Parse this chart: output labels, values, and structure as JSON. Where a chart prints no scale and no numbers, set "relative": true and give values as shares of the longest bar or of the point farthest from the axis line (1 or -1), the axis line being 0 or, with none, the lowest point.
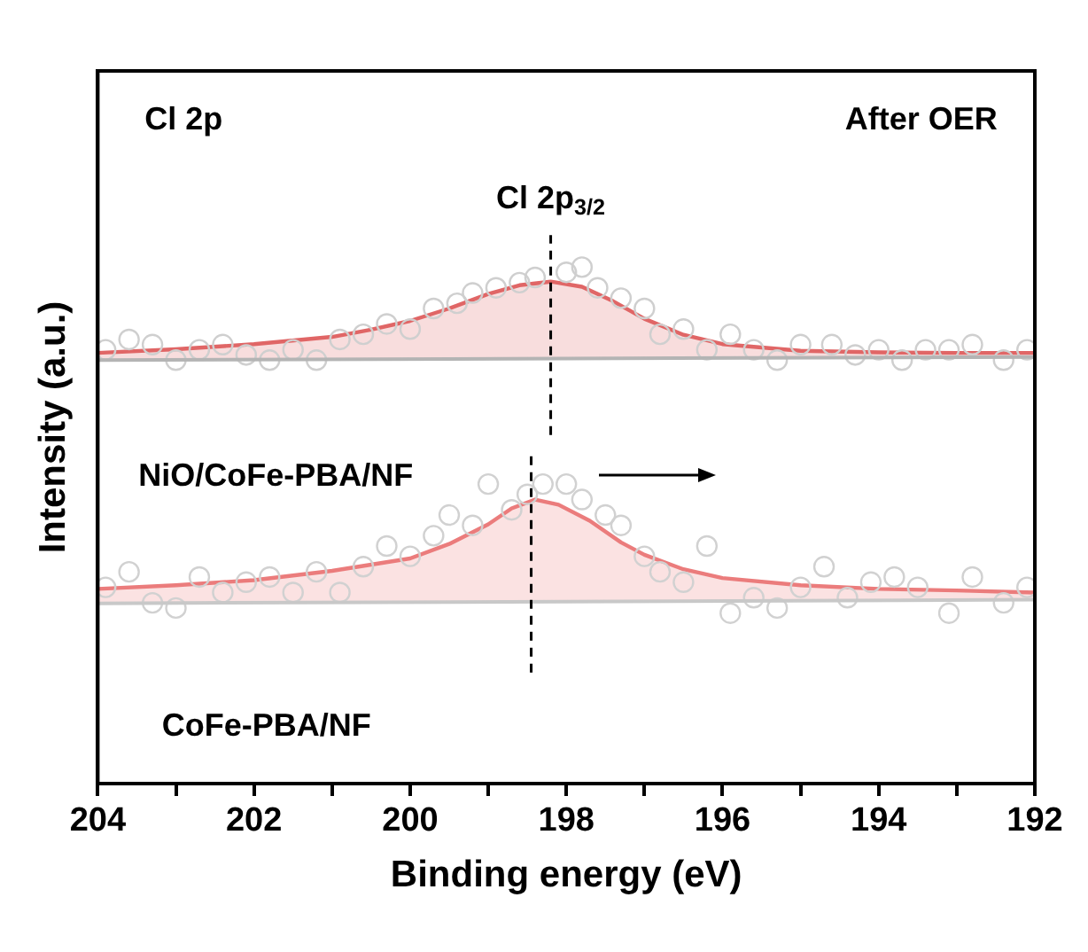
{
  "chart_data": {
    "type": "line",
    "relative": true,
    "xlabel": "Binding energy (eV)",
    "ylabel": "Intensity (a.u.)",
    "xlim": [
      204,
      192
    ],
    "xticks": [
      204,
      {
        "value": 203,
        "label": null
      },
      202,
      {
        "value": 201,
        "label": null
      },
      200,
      {
        "value": 199,
        "label": null
      },
      198,
      {
        "value": 197,
        "label": null
      },
      196,
      {
        "value": 195,
        "label": null
      },
      194,
      {
        "value": 193,
        "label": null
      },
      192
    ],
    "grid": false,
    "legend": false,
    "annotations": [
      "Cl 2p",
      "After OER",
      "Cl 2p$_{3/2}$",
      "NiO/CoFe-PBA/NF",
      "CoFe-PBA/NF"
    ],
    "ref_lines": [
      {
        "axis": "x",
        "value": 198.2,
        "color": "#000000",
        "line_style": "dashed"
      },
      {
        "axis": "x",
        "value": 198.45,
        "color": "#000000",
        "line_style": "dashed"
      }
    ],
    "series": [
      {
        "type": "area",
        "color": "#e06666",
        "x": [
          204,
          203,
          202,
          201,
          200.5,
          200,
          199.5,
          199,
          198.6,
          198.2,
          197.8,
          197.4,
          197,
          196.5,
          196,
          195,
          194,
          193,
          192
        ],
        "values": [
          0.834,
          0.841,
          0.851,
          0.865,
          0.879,
          0.896,
          0.92,
          0.948,
          0.965,
          0.972,
          0.962,
          0.934,
          0.9,
          0.869,
          0.851,
          0.838,
          0.835,
          0.834,
          0.834
        ]
      },
      {
        "color": "#b4b4b4",
        "x": [
          204,
          192
        ],
        "values": [
          0.82,
          0.826
        ]
      },
      {
        "type": "scatter",
        "color": "#cfcfcf",
        "marker": "circle",
        "x": [
          203.9,
          203.6,
          203.3,
          203.0,
          202.7,
          202.4,
          202.1,
          201.8,
          201.5,
          201.2,
          200.9,
          200.6,
          200.3,
          200.0,
          199.7,
          199.4,
          199.2,
          198.9,
          198.6,
          198.4,
          198.0,
          197.8,
          197.6,
          197.3,
          197.0,
          196.8,
          196.5,
          196.2,
          195.9,
          195.6,
          195.3,
          195.0,
          194.6,
          194.3,
          194.0,
          193.7,
          193.4,
          193.1,
          192.8,
          192.4,
          192.1
        ],
        "values": [
          0.84,
          0.86,
          0.85,
          0.82,
          0.84,
          0.85,
          0.83,
          0.82,
          0.84,
          0.82,
          0.86,
          0.87,
          0.89,
          0.88,
          0.92,
          0.93,
          0.95,
          0.96,
          0.97,
          0.98,
          0.99,
          1.0,
          0.96,
          0.94,
          0.92,
          0.87,
          0.88,
          0.84,
          0.87,
          0.84,
          0.82,
          0.85,
          0.85,
          0.83,
          0.84,
          0.82,
          0.84,
          0.84,
          0.85,
          0.82,
          0.84
        ]
      },
      {
        "type": "area",
        "color": "#eb7c7c",
        "x": [
          204,
          203,
          202,
          201,
          200,
          199.5,
          199,
          198.7,
          198.4,
          198.1,
          197.7,
          197.3,
          197,
          196.5,
          196,
          195,
          194,
          193,
          192
        ],
        "values": [
          0.377,
          0.384,
          0.394,
          0.412,
          0.436,
          0.464,
          0.502,
          0.533,
          0.55,
          0.54,
          0.509,
          0.467,
          0.443,
          0.415,
          0.398,
          0.384,
          0.377,
          0.374,
          0.37
        ]
      },
      {
        "color": "#c8c8c8",
        "x": [
          204,
          192
        ],
        "values": [
          0.349,
          0.356
        ]
      },
      {
        "type": "scatter",
        "color": "#d1d1d1",
        "marker": "circle",
        "x": [
          203.9,
          203.6,
          203.3,
          203.0,
          202.7,
          202.4,
          202.1,
          201.8,
          201.5,
          201.2,
          200.9,
          200.6,
          200.3,
          200.0,
          199.7,
          199.5,
          199.2,
          199.0,
          198.7,
          198.5,
          198.3,
          198.0,
          197.8,
          197.5,
          197.3,
          197.0,
          196.8,
          196.5,
          196.2,
          195.9,
          195.6,
          195.3,
          195.0,
          194.7,
          194.4,
          194.1,
          193.8,
          193.5,
          193.1,
          192.8,
          192.4,
          192.1
        ],
        "values": [
          0.38,
          0.41,
          0.35,
          0.34,
          0.4,
          0.37,
          0.39,
          0.4,
          0.37,
          0.41,
          0.37,
          0.42,
          0.46,
          0.44,
          0.48,
          0.52,
          0.5,
          0.58,
          0.53,
          0.56,
          0.58,
          0.58,
          0.55,
          0.52,
          0.5,
          0.44,
          0.41,
          0.39,
          0.46,
          0.33,
          0.36,
          0.34,
          0.38,
          0.42,
          0.36,
          0.39,
          0.4,
          0.38,
          0.33,
          0.4,
          0.35,
          0.38
        ]
      }
    ]
  }
}
